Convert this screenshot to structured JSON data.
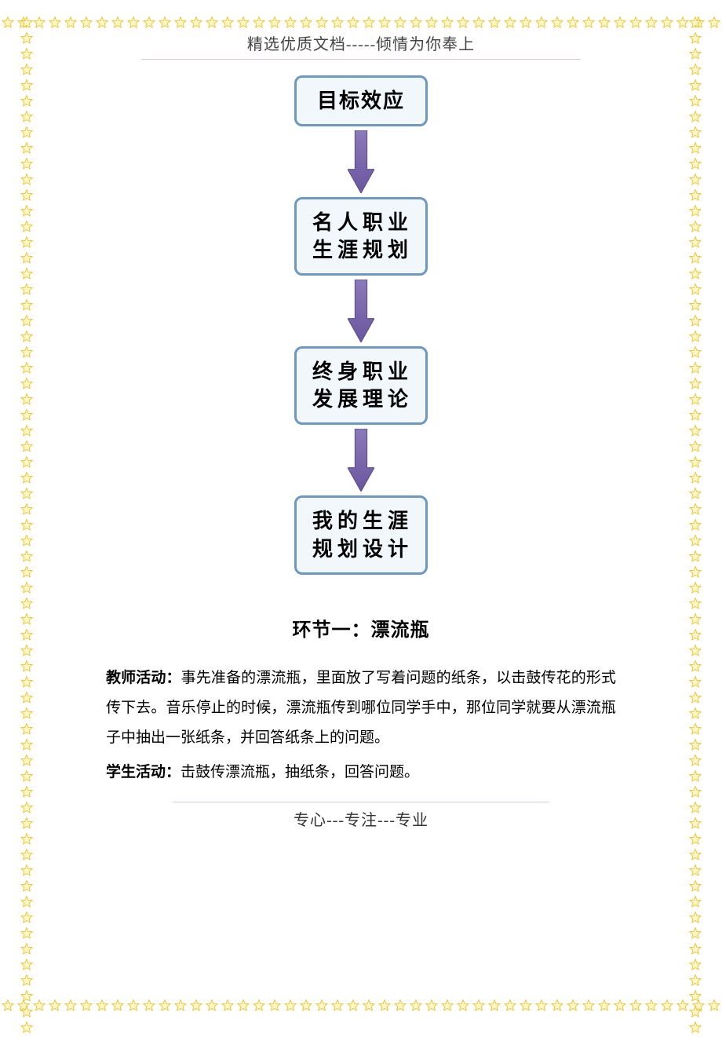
{
  "header": "精选优质文档-----倾情为你奉上",
  "footer": "专心---专注---专业",
  "flowchart": {
    "type": "flowchart",
    "nodes": [
      {
        "label": "目标效应",
        "border_color": "#6c98c2",
        "fill": "#f2f7fb",
        "fontsize": 26
      },
      {
        "label": "名人职业生涯规划",
        "border_color": "#6c98c2",
        "fill": "#f2f7fb",
        "fontsize": 26
      },
      {
        "label": "终身职业发展理论",
        "border_color": "#6c98c2",
        "fill": "#f2f7fb",
        "fontsize": 26
      },
      {
        "label": "我的生涯规划设计",
        "border_color": "#6c98c2",
        "fill": "#f2f7fb",
        "fontsize": 26
      }
    ],
    "arrow": {
      "fill_top": "#8a7ab8",
      "fill_bottom": "#6a569e",
      "stroke": "#5b4a8a",
      "width": 34,
      "height": 80
    },
    "box_border_width": 3,
    "box_border_radius": 10
  },
  "section": {
    "title": "环节一：漂流瓶",
    "teacher_label": "教师活动：",
    "teacher_text": "事先准备的漂流瓶，里面放了写着问题的纸条，以击鼓传花的形式传下去。音乐停止的时候，漂流瓶传到哪位同学手中，那位同学就要从漂流瓶子中抽出一张纸条，并回答纸条上的问题。",
    "student_label": "学生活动：",
    "student_text": "击鼓传漂流瓶，抽纸条，回答问题。"
  },
  "border": {
    "star_color_fill": "#fff6cc",
    "star_color_stroke": "#e8b800",
    "h_count": 46,
    "v_count": 65,
    "star_size": 20
  }
}
